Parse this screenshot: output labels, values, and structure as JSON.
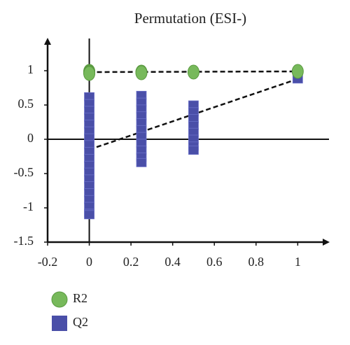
{
  "chart_data": {
    "type": "scatter",
    "title": "Permutation (ESI-)",
    "series": [
      {
        "name": "R2",
        "color": "#77b95b",
        "marker": "circle",
        "x": [
          0,
          0,
          0,
          0,
          0.25,
          0.25,
          0.5,
          1
        ],
        "values": [
          0.99,
          0.98,
          0.97,
          0.96,
          0.98,
          0.97,
          0.98,
          0.99
        ]
      },
      {
        "name": "Q2",
        "color": "#4a4fa8",
        "marker": "square",
        "x": [
          0,
          0,
          0,
          0,
          0,
          0,
          0,
          0,
          0,
          0,
          0,
          0,
          0,
          0,
          0,
          0,
          0,
          0,
          0,
          0.25,
          0.25,
          0.25,
          0.25,
          0.25,
          0.25,
          0.25,
          0.25,
          0.25,
          0.25,
          0.25,
          0.5,
          0.5,
          0.5,
          0.5,
          0.5,
          0.5,
          0.5,
          0.5,
          1
        ],
        "values": [
          0.62,
          0.52,
          0.42,
          0.32,
          0.22,
          0.12,
          0.02,
          -0.08,
          -0.18,
          -0.28,
          -0.38,
          -0.48,
          -0.58,
          -0.68,
          -0.78,
          -0.88,
          -0.98,
          -1.08,
          -1.1,
          0.64,
          0.54,
          0.44,
          0.34,
          0.24,
          0.14,
          0.04,
          -0.06,
          -0.16,
          -0.26,
          -0.34,
          0.5,
          0.4,
          0.3,
          0.2,
          0.1,
          0,
          -0.1,
          -0.16,
          0.88
        ]
      }
    ],
    "fit_lines": [
      {
        "x": [
          0,
          1
        ],
        "values": [
          0.98,
          0.99
        ]
      },
      {
        "x": [
          0,
          1
        ],
        "values": [
          -0.15,
          0.88
        ]
      }
    ],
    "xlim": [
      -0.2,
      1.15
    ],
    "ylim": [
      -1.5,
      1.47
    ],
    "xticks": [
      -0.2,
      0,
      0.2,
      0.4,
      0.6,
      0.8,
      1
    ],
    "yticks": [
      -1.5,
      -1,
      -0.5,
      0,
      0.5,
      1
    ]
  }
}
